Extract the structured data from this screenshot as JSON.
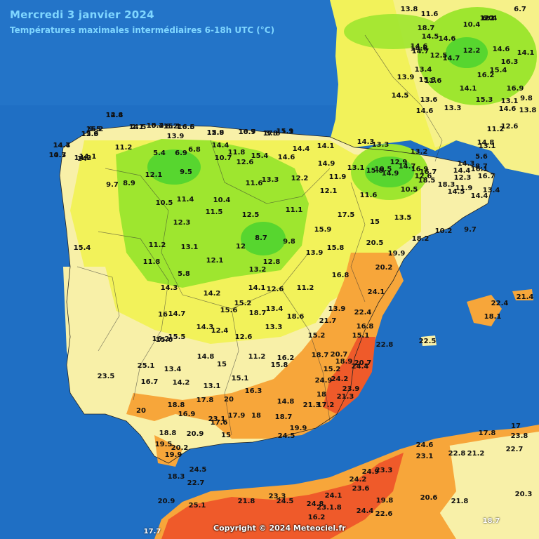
{
  "header": {
    "title": "Mercredi 3 janvier 2024",
    "subtitle": "Températures maximales intermédiaires 6-18h UTC (°C)"
  },
  "footer": {
    "copyright": "Copyright © 2024 Meteociel.fr"
  },
  "colors": {
    "sea": "#1f6fc4",
    "green_zone": "#9ee62f",
    "dark_green_zone": "#57d62f",
    "yellow_zone": "#f2f25a",
    "pale_yellow_zone": "#f8f0a8",
    "orange_zone": "#f7a63a",
    "red_zone": "#ef5a2a",
    "title_text": "#7fd6ff"
  },
  "observations": [
    "14.4",
    "14.5",
    "15.2",
    "15.1",
    "16.6",
    "15.8",
    "16.7",
    "17.6",
    "15.1",
    "15.6",
    "15.2",
    "14.4",
    "14.3",
    "14.2",
    "14.1",
    "14",
    "13.9",
    "11.2",
    "5.4",
    "6.9",
    "6.8",
    "14.4",
    "11.8",
    "10.7",
    "12.6",
    "15.4",
    "14.6",
    "14.4",
    "14.1",
    "14.9",
    "14.3",
    "13.3",
    "12.9",
    "10.5",
    "13.2",
    "9.5",
    "12.1",
    "9.7",
    "8.9",
    "11.6",
    "13.3",
    "12.2",
    "11.9",
    "11.6",
    "10.5",
    "14.4",
    "16.7",
    "10.5",
    "11.4",
    "10.4",
    "11.5",
    "12.5",
    "11.1",
    "12.1",
    "17.5",
    "15",
    "13.5",
    "18.2",
    "12.3",
    "15.4",
    "8.7",
    "9.8",
    "15.9",
    "15.8",
    "20.5",
    "11.2",
    "13.1",
    "12",
    "12.1",
    "12.8",
    "13.9",
    "19.9",
    "11.8",
    "13.2",
    "16.8",
    "20.2",
    "5.8",
    "14.3",
    "14.2",
    "14.1",
    "12.6",
    "11.2",
    "24.1",
    "15.2",
    "16",
    "14.7",
    "15.6",
    "18.7",
    "13.4",
    "18.6",
    "13.9",
    "22.4",
    "15.6",
    "16.2",
    "15.5",
    "14.3",
    "12.4",
    "12.6",
    "13.3",
    "21.7",
    "16.8",
    "15.2",
    "15.1",
    "22.8",
    "25.1",
    "14.8",
    "15",
    "11.2",
    "15.8",
    "16.2",
    "18.7",
    "20.7",
    "18.9",
    "20.7",
    "24.4",
    "23.5",
    "16.7",
    "13.4",
    "14.2",
    "13.1",
    "15.1",
    "15.2",
    "24.2",
    "24.9",
    "20",
    "16.3",
    "14.8",
    "18",
    "23.9",
    "21.3",
    "17.2",
    "20",
    "18.8",
    "17.8",
    "17.9",
    "18",
    "18.7",
    "21.3",
    "23.1",
    "17.6",
    "16.9",
    "19.9",
    "18.8",
    "20.9",
    "15",
    "24.5",
    "19.5",
    "19.9",
    "20.2",
    "24.5",
    "18.3",
    "22.7",
    "20.9",
    "25.1",
    "21.8",
    "23.3",
    "24.5",
    "24.8",
    "23.1.8",
    "24.1",
    "23.6",
    "24.2",
    "24.9",
    "23.3",
    "24.4",
    "22.6",
    "19.8",
    "20.6",
    "21.8",
    "18.7",
    "20.3",
    "17.7",
    "16.2",
    "24.6",
    "23.1",
    "22.8",
    "21.2",
    "17.8",
    "17",
    "23.8",
    "22.7",
    "21.4",
    "22.4",
    "18.1",
    "22.5",
    "20",
    "18.7",
    "14.5",
    "14.6",
    "14.6",
    "14.6",
    "14.7",
    "13.8",
    "11.6",
    "12.4",
    "12.5",
    "14.5",
    "13.4",
    "15.3",
    "13.6",
    "14.6",
    "13.3",
    "11.6",
    "13.9",
    "14.1",
    "15.3",
    "14.6",
    "13.1",
    "13.8",
    "12.6",
    "11.2",
    "10.4",
    "12.2",
    "14.7",
    "16.2",
    "15.4",
    "14.6",
    "14.1",
    "16.3",
    "16.9",
    "6.7",
    "6.2",
    "9.8",
    "5.6",
    "8.7",
    "12.3",
    "11.9",
    "9.7",
    "10.2",
    "13.4",
    "14.5",
    "14.4",
    "16.1",
    "14.3",
    "16.7",
    "18.5",
    "18.3",
    "14.8",
    "13.1",
    "16.9",
    "12.6",
    "14.7",
    "14.9",
    "13.1",
    "15.8",
    "12.8",
    "2.1",
    "10.4",
    "8.2",
    "16.5",
    "12.9",
    "10.9",
    "3.8",
    "11.9",
    "12.9",
    "9.5",
    "14.7",
    "10.7"
  ]
}
